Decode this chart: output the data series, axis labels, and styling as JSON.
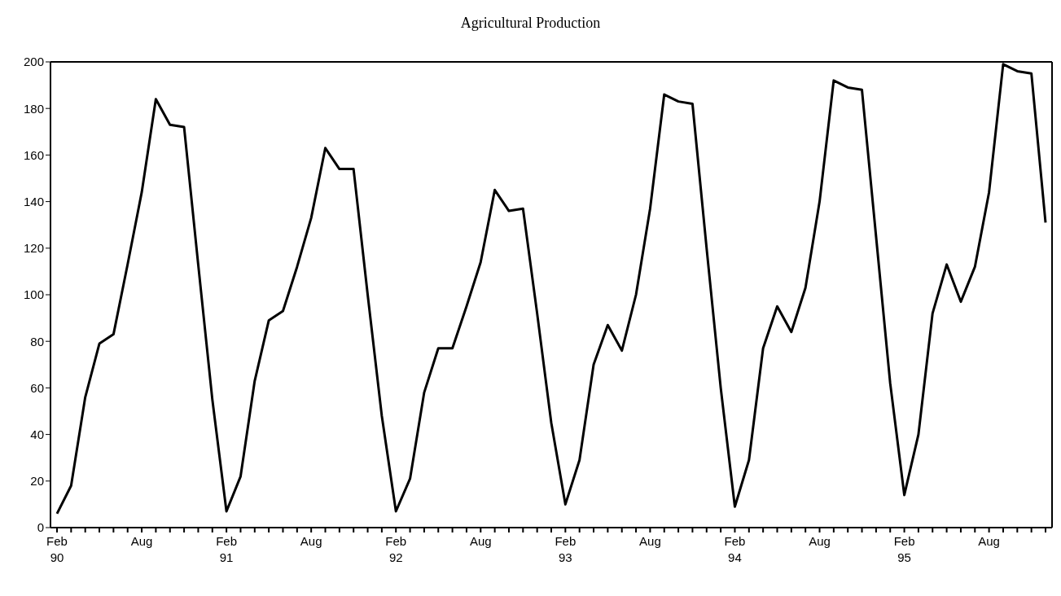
{
  "chart_data": {
    "type": "line",
    "title": "Agricultural Production",
    "categories": [
      "Feb 90",
      null,
      null,
      null,
      null,
      null,
      "Aug",
      null,
      null,
      null,
      null,
      null,
      "Feb 91",
      null,
      null,
      null,
      null,
      null,
      "Aug",
      null,
      null,
      null,
      null,
      null,
      "Feb 92",
      null,
      null,
      null,
      null,
      null,
      "Aug",
      null,
      null,
      null,
      null,
      null,
      "Feb 93",
      null,
      null,
      null,
      null,
      null,
      "Aug",
      null,
      null,
      null,
      null,
      null,
      "Feb 94",
      null,
      null,
      null,
      null,
      null,
      "Aug",
      null,
      null,
      null,
      null,
      null,
      "Feb 95",
      null,
      null,
      null,
      null,
      null,
      "Aug",
      null,
      null,
      null,
      null
    ],
    "series": [
      {
        "color": "#000000",
        "values": [
          6,
          18,
          56,
          79,
          83,
          113,
          144,
          184,
          173,
          172,
          113,
          55,
          7,
          22,
          63,
          89,
          93,
          112,
          133,
          163,
          154,
          154,
          100,
          48,
          7,
          21,
          58,
          77,
          77,
          95,
          114,
          145,
          136,
          137,
          92,
          45,
          10,
          29,
          70,
          87,
          76,
          100,
          137,
          186,
          183,
          182,
          120,
          60,
          9,
          29,
          77,
          95,
          84,
          103,
          140,
          192,
          189,
          188,
          125,
          62,
          14,
          40,
          92,
          113,
          97,
          112,
          144,
          199,
          196,
          195,
          131
        ]
      }
    ],
    "ylim": [
      0,
      200
    ],
    "yticks": [
      0,
      20,
      40,
      60,
      80,
      100,
      120,
      140,
      160,
      180,
      200
    ],
    "grid": false,
    "legend": false,
    "marker": "none",
    "line_style": "solid"
  }
}
